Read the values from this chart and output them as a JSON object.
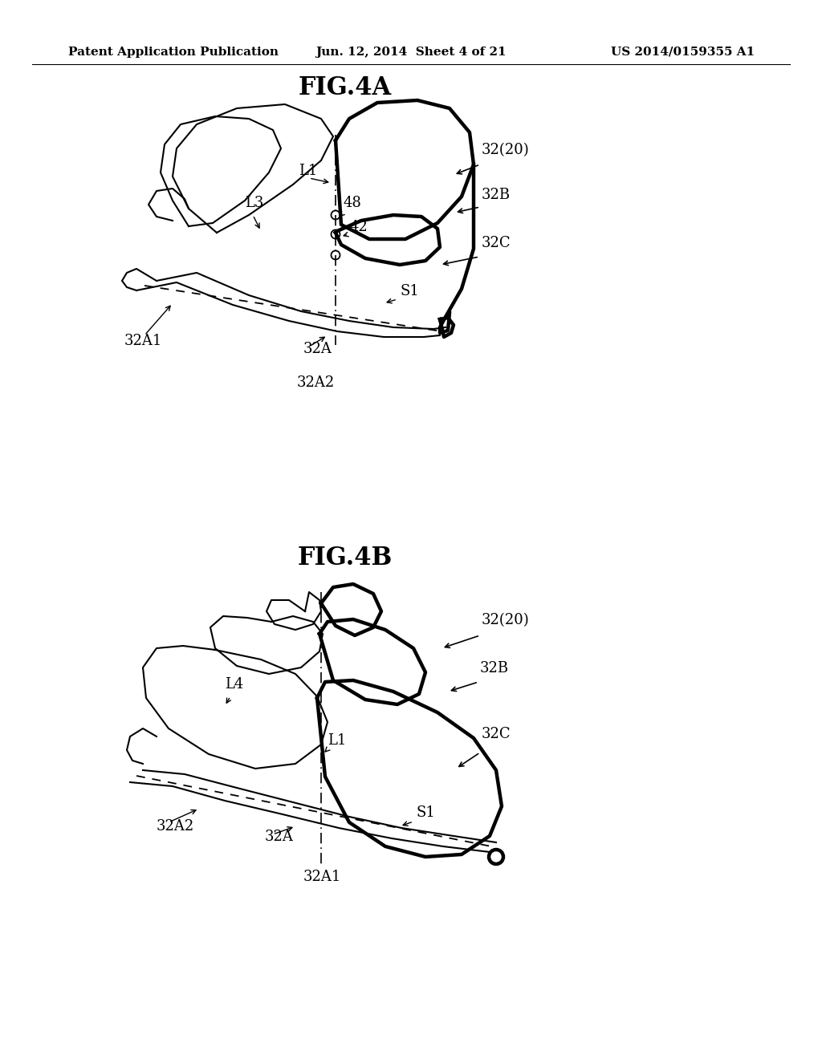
{
  "bg_color": "#ffffff",
  "header_left": "Patent Application Publication",
  "header_mid": "Jun. 12, 2014  Sheet 4 of 21",
  "header_right": "US 2014/0159355 A1",
  "fig4a_title": "FIG.4A",
  "fig4b_title": "FIG.4B",
  "header_fontsize": 11,
  "title_fontsize": 22,
  "label_fontsize": 13
}
